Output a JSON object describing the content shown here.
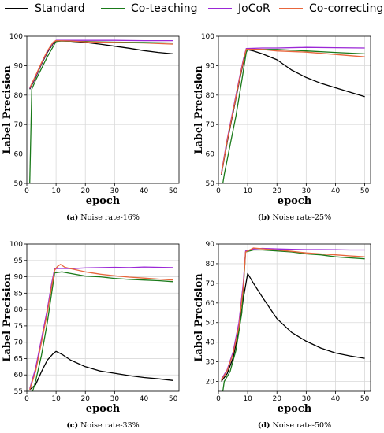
{
  "legend": [
    {
      "label": "Standard",
      "color": "#000000"
    },
    {
      "label": "Co-teaching",
      "color": "#1a7a1a"
    },
    {
      "label": "JoCoR",
      "color": "#9b27d6"
    },
    {
      "label": "Co-correcting",
      "color": "#e8663c"
    }
  ],
  "chart_data": [
    {
      "type": "line",
      "caption_letter": "(a)",
      "caption_text": "Noise rate-16%",
      "xlabel": "epoch",
      "ylabel": "Label Precision",
      "xlim": [
        0,
        52
      ],
      "ylim": [
        50,
        100
      ],
      "xticks": [
        0,
        10,
        20,
        30,
        40,
        50
      ],
      "yticks": [
        50,
        60,
        70,
        80,
        90,
        100
      ],
      "grid": true,
      "series": [
        {
          "name": "Standard",
          "color": "#000000",
          "points": [
            [
              1,
              82
            ],
            [
              3,
              86
            ],
            [
              5,
              90.5
            ],
            [
              7,
              94.5
            ],
            [
              9,
              97.5
            ],
            [
              10,
              98.4
            ],
            [
              12,
              98.4
            ],
            [
              15,
              98.3
            ],
            [
              20,
              97.9
            ],
            [
              25,
              97.3
            ],
            [
              30,
              96.6
            ],
            [
              35,
              95.9
            ],
            [
              40,
              95.1
            ],
            [
              45,
              94.5
            ],
            [
              50,
              94
            ]
          ]
        },
        {
          "name": "Co-teaching",
          "color": "#1a7a1a",
          "points": [
            [
              1,
              50
            ],
            [
              1.7,
              82
            ],
            [
              3,
              85
            ],
            [
              5,
              89
            ],
            [
              7,
              93
            ],
            [
              9,
              96.5
            ],
            [
              10,
              98.2
            ],
            [
              12,
              98.4
            ],
            [
              15,
              98.3
            ],
            [
              20,
              98.2
            ],
            [
              30,
              98
            ],
            [
              40,
              97.9
            ],
            [
              50,
              97.7
            ]
          ]
        },
        {
          "name": "JoCoR",
          "color": "#9b27d6",
          "points": [
            [
              1,
              82.3
            ],
            [
              3,
              86.3
            ],
            [
              5,
              90.8
            ],
            [
              7,
              94.8
            ],
            [
              9,
              97.8
            ],
            [
              10,
              98.6
            ],
            [
              15,
              98.6
            ],
            [
              20,
              98.6
            ],
            [
              30,
              98.6
            ],
            [
              40,
              98.5
            ],
            [
              50,
              98.5
            ]
          ]
        },
        {
          "name": "Co-correcting",
          "color": "#e8663c",
          "points": [
            [
              1,
              82.5
            ],
            [
              3,
              86.6
            ],
            [
              5,
              91
            ],
            [
              7,
              95
            ],
            [
              9,
              98
            ],
            [
              10,
              98.5
            ],
            [
              15,
              98.4
            ],
            [
              20,
              98.1
            ],
            [
              30,
              97.9
            ],
            [
              40,
              97.7
            ],
            [
              50,
              97.3
            ]
          ]
        }
      ]
    },
    {
      "type": "line",
      "caption_letter": "(b)",
      "caption_text": "Noise rate-25%",
      "xlabel": "epoch",
      "ylabel": "Label Precision",
      "xlim": [
        0,
        52
      ],
      "ylim": [
        50,
        100
      ],
      "xticks": [
        0,
        10,
        20,
        30,
        40,
        50
      ],
      "yticks": [
        50,
        60,
        70,
        80,
        90,
        100
      ],
      "grid": true,
      "series": [
        {
          "name": "Standard",
          "color": "#000000",
          "points": [
            [
              1,
              53
            ],
            [
              3,
              64
            ],
            [
              5,
              74
            ],
            [
              7,
              84
            ],
            [
              8.5,
              91
            ],
            [
              9.5,
              95.5
            ],
            [
              12,
              95
            ],
            [
              15,
              94
            ],
            [
              20,
              92
            ],
            [
              25,
              88.5
            ],
            [
              30,
              86
            ],
            [
              35,
              84
            ],
            [
              40,
              82.5
            ],
            [
              45,
              81
            ],
            [
              50,
              79.5
            ]
          ]
        },
        {
          "name": "Co-teaching",
          "color": "#1a7a1a",
          "points": [
            [
              1.5,
              50
            ],
            [
              2,
              53
            ],
            [
              4,
              63
            ],
            [
              6,
              73
            ],
            [
              8,
              85
            ],
            [
              9.5,
              94.5
            ],
            [
              10,
              95.5
            ],
            [
              15,
              95.5
            ],
            [
              20,
              95.5
            ],
            [
              30,
              95
            ],
            [
              40,
              94.5
            ],
            [
              50,
              94
            ]
          ]
        },
        {
          "name": "JoCoR",
          "color": "#9b27d6",
          "points": [
            [
              1,
              53.5
            ],
            [
              3,
              65
            ],
            [
              5,
              75
            ],
            [
              7,
              85
            ],
            [
              8.5,
              92
            ],
            [
              9.5,
              95.8
            ],
            [
              15,
              96
            ],
            [
              20,
              96
            ],
            [
              30,
              96.2
            ],
            [
              40,
              96.1
            ],
            [
              50,
              96
            ]
          ]
        },
        {
          "name": "Co-correcting",
          "color": "#e8663c",
          "points": [
            [
              1,
              53.2
            ],
            [
              3,
              64.5
            ],
            [
              5,
              74.5
            ],
            [
              7,
              84.5
            ],
            [
              8.5,
              91.5
            ],
            [
              9.5,
              95.6
            ],
            [
              15,
              95.5
            ],
            [
              20,
              95
            ],
            [
              30,
              94.6
            ],
            [
              40,
              93.8
            ],
            [
              50,
              93
            ]
          ]
        }
      ]
    },
    {
      "type": "line",
      "caption_letter": "(c)",
      "caption_text": "Noise rate-33%",
      "xlabel": "epoch",
      "ylabel": "Label Precision",
      "xlim": [
        0,
        52
      ],
      "ylim": [
        55,
        100
      ],
      "xticks": [
        0,
        10,
        20,
        30,
        40,
        50
      ],
      "yticks": [
        55,
        60,
        65,
        70,
        75,
        80,
        85,
        90,
        95,
        100
      ],
      "grid": true,
      "series": [
        {
          "name": "Standard",
          "color": "#000000",
          "points": [
            [
              1,
              55.5
            ],
            [
              3,
              57
            ],
            [
              5,
              61
            ],
            [
              7,
              64.5
            ],
            [
              9,
              66.5
            ],
            [
              10,
              67.2
            ],
            [
              12,
              66.3
            ],
            [
              15,
              64.5
            ],
            [
              20,
              62.5
            ],
            [
              25,
              61.2
            ],
            [
              30,
              60.5
            ],
            [
              35,
              59.8
            ],
            [
              40,
              59.2
            ],
            [
              45,
              58.8
            ],
            [
              50,
              58.3
            ]
          ]
        },
        {
          "name": "Co-teaching",
          "color": "#1a7a1a",
          "points": [
            [
              2,
              55
            ],
            [
              3,
              58
            ],
            [
              5,
              66
            ],
            [
              7,
              76
            ],
            [
              8.5,
              85
            ],
            [
              9.5,
              91.2
            ],
            [
              12,
              91.5
            ],
            [
              15,
              91
            ],
            [
              20,
              90.2
            ],
            [
              25,
              90
            ],
            [
              30,
              89.5
            ],
            [
              35,
              89.2
            ],
            [
              40,
              89
            ],
            [
              45,
              88.8
            ],
            [
              50,
              88.5
            ]
          ]
        },
        {
          "name": "JoCoR",
          "color": "#9b27d6",
          "points": [
            [
              1,
              55.8
            ],
            [
              3,
              62
            ],
            [
              5,
              71
            ],
            [
              7,
              80
            ],
            [
              8.5,
              88
            ],
            [
              9.5,
              92.5
            ],
            [
              12,
              92.6
            ],
            [
              15,
              92.5
            ],
            [
              20,
              92.7
            ],
            [
              25,
              92.8
            ],
            [
              30,
              92.9
            ],
            [
              35,
              92.8
            ],
            [
              40,
              93
            ],
            [
              45,
              92.9
            ],
            [
              50,
              92.8
            ]
          ]
        },
        {
          "name": "Co-correcting",
          "color": "#e8663c",
          "points": [
            [
              1,
              55.5
            ],
            [
              3,
              61
            ],
            [
              5,
              70
            ],
            [
              7,
              79
            ],
            [
              8.5,
              87
            ],
            [
              9.5,
              92
            ],
            [
              10.5,
              93.2
            ],
            [
              11.5,
              93.8
            ],
            [
              13,
              92.9
            ],
            [
              15,
              92.5
            ],
            [
              20,
              91.5
            ],
            [
              25,
              90.8
            ],
            [
              30,
              90.3
            ],
            [
              35,
              89.9
            ],
            [
              40,
              89.6
            ],
            [
              45,
              89.3
            ],
            [
              50,
              89
            ]
          ]
        }
      ]
    },
    {
      "type": "line",
      "caption_letter": "(d)",
      "caption_text": "Noise rate-50%",
      "xlabel": "epoch",
      "ylabel": "Label Precision",
      "xlim": [
        0,
        52
      ],
      "ylim": [
        15,
        90
      ],
      "xticks": [
        0,
        10,
        20,
        30,
        40,
        50
      ],
      "yticks": [
        20,
        30,
        40,
        50,
        60,
        70,
        80,
        90
      ],
      "grid": true,
      "series": [
        {
          "name": "Standard",
          "color": "#000000",
          "points": [
            [
              1,
              20
            ],
            [
              3,
              24
            ],
            [
              5,
              32
            ],
            [
              7,
              46
            ],
            [
              8.5,
              62
            ],
            [
              10,
              75
            ],
            [
              12,
              70
            ],
            [
              15,
              63
            ],
            [
              20,
              52
            ],
            [
              25,
              45
            ],
            [
              30,
              40.5
            ],
            [
              35,
              37
            ],
            [
              40,
              34.5
            ],
            [
              45,
              33
            ],
            [
              50,
              31.8
            ]
          ]
        },
        {
          "name": "Co-teaching",
          "color": "#1a7a1a",
          "points": [
            [
              1.5,
              15
            ],
            [
              2,
              20
            ],
            [
              4,
              25
            ],
            [
              6,
              36
            ],
            [
              8,
              55
            ],
            [
              9.3,
              86
            ],
            [
              12,
              87
            ],
            [
              15,
              87
            ],
            [
              20,
              86.5
            ],
            [
              25,
              86
            ],
            [
              30,
              85
            ],
            [
              35,
              84.5
            ],
            [
              40,
              83.5
            ],
            [
              45,
              83
            ],
            [
              50,
              82.5
            ]
          ]
        },
        {
          "name": "JoCoR",
          "color": "#9b27d6",
          "points": [
            [
              1,
              21
            ],
            [
              3,
              26
            ],
            [
              5,
              35
            ],
            [
              7,
              50
            ],
            [
              8.5,
              70
            ],
            [
              9.3,
              86.5
            ],
            [
              12,
              87.5
            ],
            [
              15,
              87.8
            ],
            [
              20,
              87.5
            ],
            [
              25,
              87.3
            ],
            [
              30,
              87.2
            ],
            [
              35,
              87.2
            ],
            [
              40,
              87.1
            ],
            [
              45,
              87
            ],
            [
              50,
              87
            ]
          ]
        },
        {
          "name": "Co-correcting",
          "color": "#e8663c",
          "points": [
            [
              1,
              20.5
            ],
            [
              3,
              25.5
            ],
            [
              5,
              34
            ],
            [
              7,
              48
            ],
            [
              8.5,
              68
            ],
            [
              9.3,
              86
            ],
            [
              12,
              88
            ],
            [
              15,
              87.6
            ],
            [
              20,
              87
            ],
            [
              25,
              86.3
            ],
            [
              30,
              85.5
            ],
            [
              35,
              85
            ],
            [
              40,
              84.5
            ],
            [
              45,
              84
            ],
            [
              50,
              83.5
            ]
          ]
        }
      ]
    }
  ]
}
